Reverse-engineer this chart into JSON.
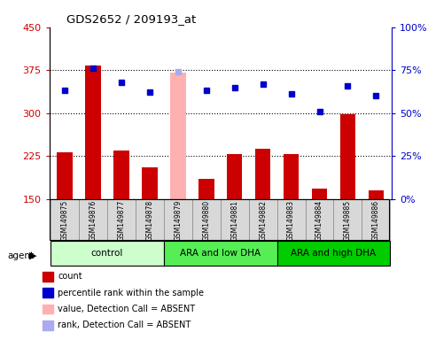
{
  "title": "GDS2652 / 209193_at",
  "samples": [
    "GSM149875",
    "GSM149876",
    "GSM149877",
    "GSM149878",
    "GSM149879",
    "GSM149880",
    "GSM149881",
    "GSM149882",
    "GSM149883",
    "GSM149884",
    "GSM149885",
    "GSM149886"
  ],
  "bar_values": [
    232,
    383,
    234,
    205,
    370,
    185,
    228,
    237,
    228,
    168,
    298,
    165
  ],
  "bar_absent": [
    false,
    false,
    false,
    false,
    true,
    false,
    false,
    false,
    false,
    false,
    false,
    false
  ],
  "percentile_values": [
    63,
    76,
    68,
    62,
    74,
    63,
    65,
    67,
    61,
    51,
    66,
    60
  ],
  "percentile_absent": [
    false,
    false,
    false,
    false,
    true,
    false,
    false,
    false,
    false,
    false,
    false,
    false
  ],
  "groups": [
    {
      "label": "control",
      "start": 0,
      "end": 3,
      "color": "#ccffcc"
    },
    {
      "label": "ARA and low DHA",
      "start": 4,
      "end": 7,
      "color": "#55ee55"
    },
    {
      "label": "ARA and high DHA",
      "start": 8,
      "end": 11,
      "color": "#00cc00"
    }
  ],
  "ylim_left": [
    150,
    450
  ],
  "ylim_right": [
    0,
    100
  ],
  "yticks_left": [
    150,
    225,
    300,
    375,
    450
  ],
  "yticks_right": [
    0,
    25,
    50,
    75,
    100
  ],
  "ytick_labels_left": [
    "150",
    "225",
    "300",
    "375",
    "450"
  ],
  "ytick_labels_right": [
    "0%",
    "25%",
    "50%",
    "75%",
    "100%"
  ],
  "hlines": [
    225,
    300,
    375
  ],
  "bar_color_normal": "#cc0000",
  "bar_color_absent": "#ffb0b0",
  "dot_color_normal": "#0000cc",
  "dot_color_absent": "#aaaaee",
  "left_axis_color": "#cc0000",
  "right_axis_color": "#0000cc",
  "legend_items": [
    {
      "label": "count",
      "color": "#cc0000"
    },
    {
      "label": "percentile rank within the sample",
      "color": "#0000cc"
    },
    {
      "label": "value, Detection Call = ABSENT",
      "color": "#ffb0b0"
    },
    {
      "label": "rank, Detection Call = ABSENT",
      "color": "#aaaaee"
    }
  ]
}
